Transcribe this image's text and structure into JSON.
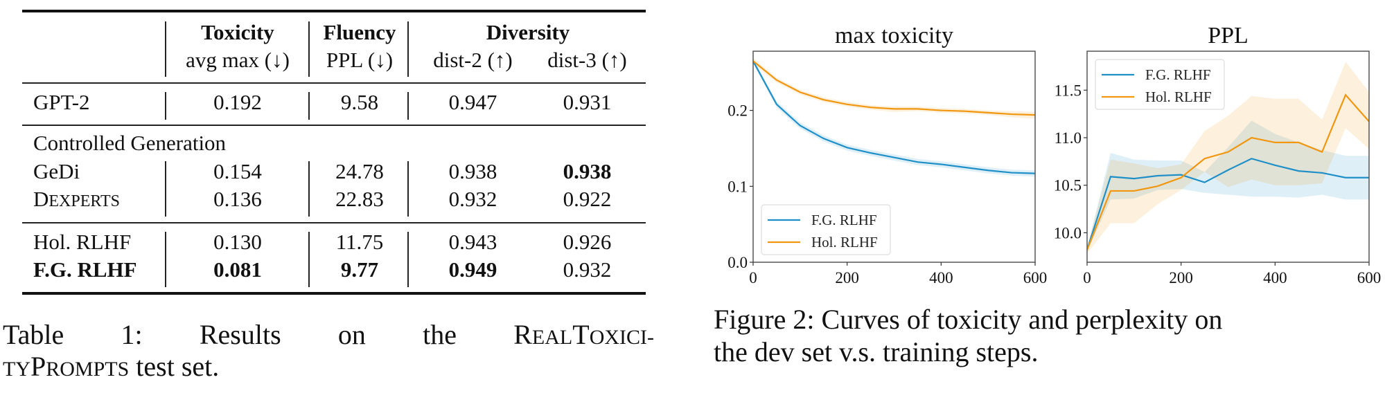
{
  "table": {
    "header_groups": [
      {
        "label": "Toxicity",
        "sub": [
          "avg max (↓)"
        ]
      },
      {
        "label": "Fluency",
        "sub": [
          "PPL (↓)"
        ]
      },
      {
        "label": "Diversity",
        "sub": [
          "dist-2 (↑)",
          "dist-3 (↑)"
        ]
      }
    ],
    "rows": [
      {
        "name": "GPT-2",
        "values": [
          "0.192",
          "9.58",
          "0.947",
          "0.931"
        ],
        "bold": [
          false,
          false,
          false,
          false
        ],
        "name_bold": false
      },
      {
        "name": "GeDi",
        "values": [
          "0.154",
          "24.78",
          "0.938",
          "0.938"
        ],
        "bold": [
          false,
          false,
          false,
          true
        ],
        "name_bold": false
      },
      {
        "name_first": "D",
        "name_rest": "EXPERTS",
        "values": [
          "0.136",
          "22.83",
          "0.932",
          "0.922"
        ],
        "bold": [
          false,
          false,
          false,
          false
        ],
        "name_bold": false
      },
      {
        "name": "Hol. RLHF",
        "values": [
          "0.130",
          "11.75",
          "0.943",
          "0.926"
        ],
        "bold": [
          false,
          false,
          false,
          false
        ],
        "name_bold": false
      },
      {
        "name": "F.G. RLHF",
        "values": [
          "0.081",
          "9.77",
          "0.949",
          "0.932"
        ],
        "bold": [
          true,
          true,
          true,
          false
        ],
        "name_bold": true
      }
    ],
    "section_label": "Controlled Generation",
    "caption_line1": [
      "Table",
      "1:",
      "Results",
      "on",
      "the"
    ],
    "caption_sc1": {
      "R": "R",
      "EAL": "EAL",
      "T": "T",
      "OXICI": "OXICI-"
    },
    "caption_line2_sc": {
      "TY": "TY",
      "P": "P",
      "ROMPTS": "ROMPTS"
    },
    "caption_line2_rest": " test set."
  },
  "figure_caption": {
    "line1": "Figure 2: Curves of toxicity and perplexity on",
    "line2": "the dev set v.s. training steps."
  },
  "chart_data": [
    {
      "type": "line",
      "title": "max toxicity",
      "xlabel": "",
      "ylabel": "",
      "xlim": [
        0,
        600
      ],
      "ylim": [
        0.0,
        0.278
      ],
      "xticks": [
        0,
        200,
        400,
        600
      ],
      "xtick_labels": [
        "0",
        "200",
        "400",
        "600"
      ],
      "yticks": [
        0.0,
        0.1,
        0.2
      ],
      "ytick_labels": [
        "0.0",
        "0.1",
        "0.2"
      ],
      "legend_position": "lower-left",
      "grid": false,
      "x": [
        0,
        50,
        100,
        150,
        200,
        250,
        300,
        350,
        400,
        450,
        500,
        550,
        600
      ],
      "series": [
        {
          "name": "F.G. RLHF",
          "color": "#1f8fc8",
          "values": [
            0.265,
            0.208,
            0.18,
            0.163,
            0.151,
            0.144,
            0.138,
            0.132,
            0.129,
            0.125,
            0.121,
            0.118,
            0.117
          ],
          "band_upper": [
            0.268,
            0.212,
            0.184,
            0.167,
            0.155,
            0.148,
            0.142,
            0.136,
            0.133,
            0.129,
            0.125,
            0.122,
            0.121
          ],
          "band_lower": [
            0.262,
            0.204,
            0.176,
            0.159,
            0.147,
            0.14,
            0.134,
            0.128,
            0.125,
            0.121,
            0.117,
            0.114,
            0.113
          ]
        },
        {
          "name": "Hol. RLHF",
          "color": "#f0960f",
          "values": [
            0.265,
            0.24,
            0.224,
            0.214,
            0.208,
            0.204,
            0.202,
            0.202,
            0.2,
            0.199,
            0.197,
            0.195,
            0.194
          ],
          "band_upper": [
            0.269,
            0.243,
            0.227,
            0.217,
            0.211,
            0.207,
            0.205,
            0.205,
            0.203,
            0.202,
            0.2,
            0.199,
            0.198
          ],
          "band_lower": [
            0.261,
            0.237,
            0.221,
            0.211,
            0.205,
            0.201,
            0.198,
            0.199,
            0.197,
            0.196,
            0.194,
            0.191,
            0.189
          ]
        }
      ]
    },
    {
      "type": "line",
      "title": "PPL",
      "xlabel": "",
      "ylabel": "",
      "xlim": [
        0,
        600
      ],
      "ylim": [
        9.69,
        11.91
      ],
      "xticks": [
        0,
        200,
        400,
        600
      ],
      "xtick_labels": [
        "0",
        "200",
        "400",
        "600"
      ],
      "yticks": [
        10.0,
        10.5,
        11.0,
        11.5
      ],
      "ytick_labels": [
        "10.0",
        "10.5",
        "11.0",
        "11.5"
      ],
      "legend_position": "upper-left",
      "grid": false,
      "x": [
        0,
        50,
        100,
        150,
        200,
        250,
        300,
        350,
        400,
        450,
        500,
        550,
        600
      ],
      "series": [
        {
          "name": "F.G. RLHF",
          "color": "#1f8fc8",
          "values": [
            9.82,
            10.59,
            10.57,
            10.6,
            10.61,
            10.53,
            10.66,
            10.78,
            10.71,
            10.65,
            10.63,
            10.58,
            10.58
          ],
          "band_upper": [
            9.84,
            10.84,
            10.77,
            10.76,
            10.76,
            10.64,
            10.9,
            11.18,
            11.04,
            10.95,
            10.87,
            10.81,
            10.81
          ],
          "band_lower": [
            9.8,
            10.35,
            10.36,
            10.45,
            10.46,
            10.42,
            10.4,
            10.38,
            10.38,
            10.37,
            10.4,
            10.35,
            10.35
          ]
        },
        {
          "name": "Hol. RLHF",
          "color": "#f0960f",
          "values": [
            9.82,
            10.44,
            10.44,
            10.49,
            10.58,
            10.78,
            10.85,
            11.0,
            10.95,
            10.95,
            10.85,
            11.45,
            11.17
          ],
          "band_upper": [
            9.85,
            10.77,
            10.73,
            10.68,
            10.72,
            11.07,
            11.23,
            11.44,
            11.41,
            11.41,
            11.19,
            11.8,
            11.48
          ],
          "band_lower": [
            9.78,
            10.1,
            10.1,
            10.3,
            10.45,
            10.64,
            10.48,
            10.56,
            10.5,
            10.5,
            10.52,
            11.1,
            10.88
          ]
        }
      ]
    }
  ]
}
